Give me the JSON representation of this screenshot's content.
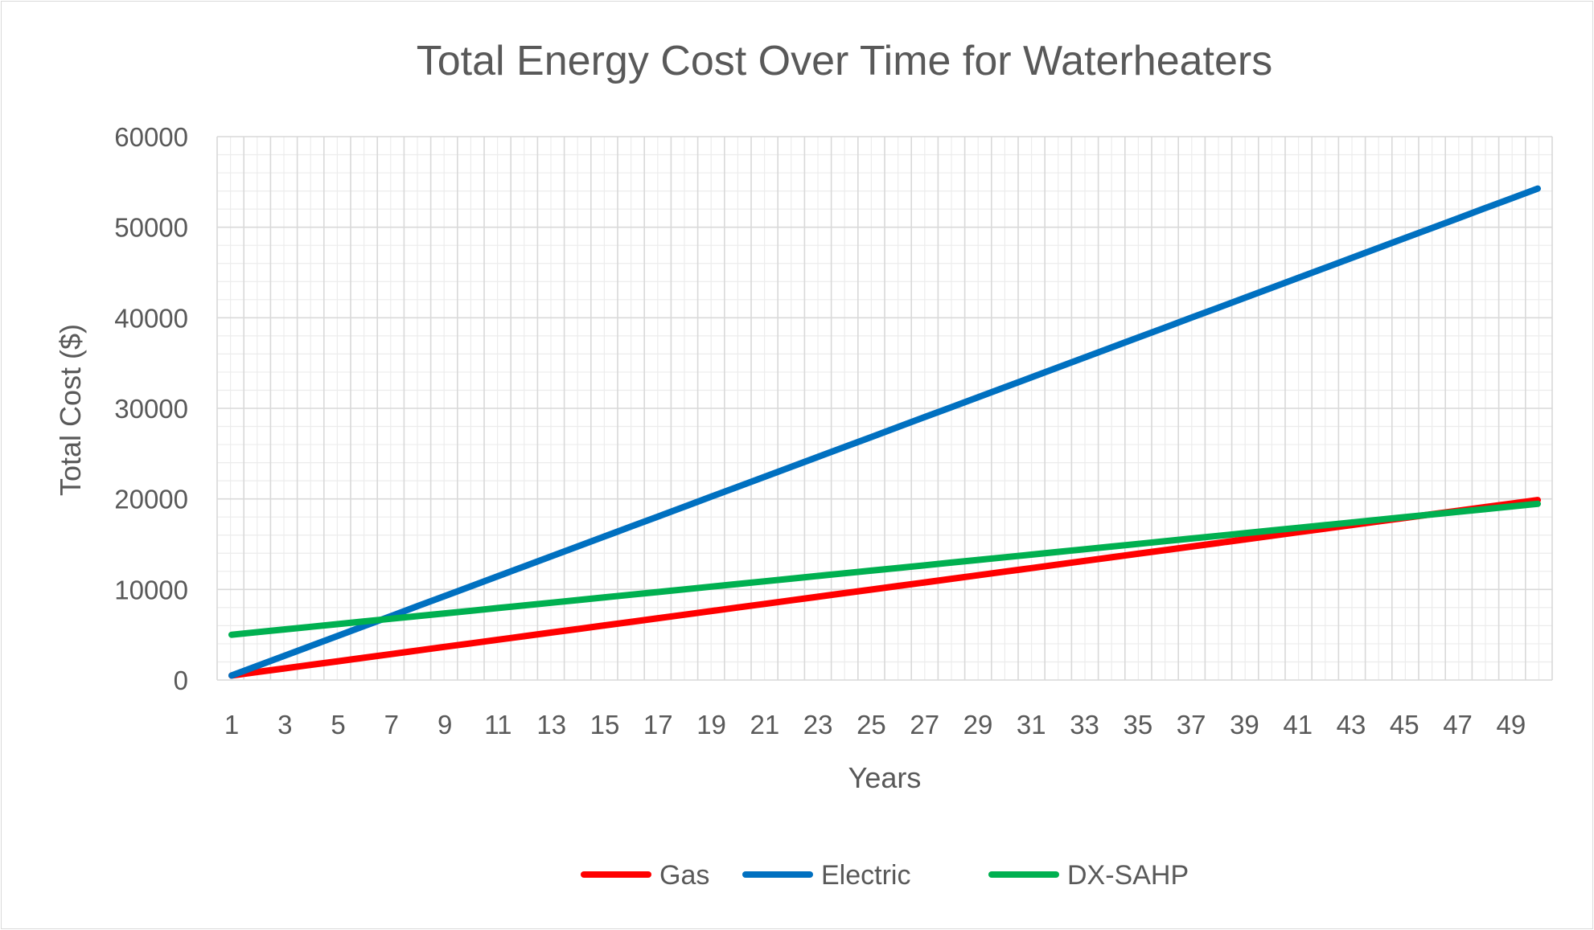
{
  "chart_data": {
    "type": "line",
    "title": "Total Energy Cost Over Time for Waterheaters",
    "xlabel": "Years",
    "ylabel": "Total Cost ($)",
    "x_range": [
      1,
      50
    ],
    "ylim": [
      0,
      60000
    ],
    "y_ticks": [
      "0",
      "10000",
      "20000",
      "30000",
      "40000",
      "50000",
      "60000"
    ],
    "x_tick_labels": [
      "1",
      "3",
      "5",
      "7",
      "9",
      "11",
      "13",
      "15",
      "17",
      "19",
      "21",
      "23",
      "25",
      "27",
      "29",
      "31",
      "33",
      "35",
      "37",
      "39",
      "41",
      "43",
      "45",
      "47",
      "49"
    ],
    "grid": true,
    "legend_position": "bottom",
    "series": [
      {
        "name": "Gas",
        "color": "#ff0000",
        "x_start": 1,
        "values": [
          500,
          895,
          1290,
          1685,
          2081,
          2476,
          2871,
          3267,
          3662,
          4057,
          4453,
          4848,
          5243,
          5639,
          6034,
          6429,
          6825,
          7220,
          7615,
          8011,
          8406,
          8801,
          9197,
          9592,
          9987,
          10383,
          10778,
          11173,
          11569,
          11964,
          12359,
          12755,
          13150,
          13545,
          13941,
          14336,
          14731,
          15127,
          15522,
          15917,
          16313,
          16708,
          17103,
          17499,
          17894,
          18289,
          18685,
          19080,
          19475,
          19871
        ]
      },
      {
        "name": "Electric",
        "color": "#0070c0",
        "x_start": 1,
        "values": [
          500,
          1598,
          2695,
          3792,
          4889,
          5987,
          7084,
          8181,
          9278,
          10376,
          11473,
          12570,
          13667,
          14765,
          15862,
          16959,
          18056,
          19154,
          20251,
          21348,
          22445,
          23543,
          24640,
          25737,
          26834,
          27932,
          29029,
          30126,
          31223,
          32321,
          33418,
          34515,
          35612,
          36710,
          37807,
          38904,
          40001,
          41099,
          42196,
          43293,
          44390,
          45488,
          46585,
          47682,
          48779,
          49877,
          50974,
          52071,
          53168,
          54266
        ]
      },
      {
        "name": "DX-SAHP",
        "color": "#00b050",
        "x_start": 1,
        "values": [
          5000,
          5295,
          5590,
          5885,
          6180,
          6475,
          6770,
          7065,
          7360,
          7655,
          7950,
          8245,
          8540,
          8835,
          9130,
          9425,
          9720,
          10015,
          10310,
          10605,
          10900,
          11195,
          11490,
          11785,
          12080,
          12375,
          12670,
          12965,
          13260,
          13555,
          13850,
          14145,
          14440,
          14735,
          15030,
          15325,
          15620,
          15915,
          16210,
          16505,
          16800,
          17095,
          17390,
          17685,
          17980,
          18275,
          18570,
          18865,
          19160,
          19455
        ]
      }
    ]
  }
}
